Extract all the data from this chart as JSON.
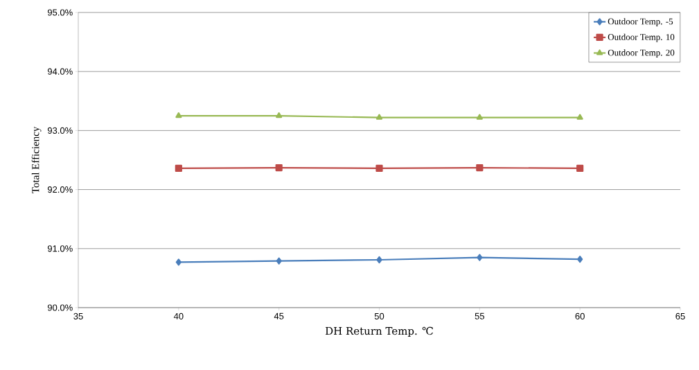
{
  "chart_data": {
    "type": "line",
    "xlabel": "DH Return Temp. ℃",
    "ylabel": "Total Efficiency",
    "x": [
      40,
      45,
      50,
      55,
      60
    ],
    "series": [
      {
        "name": "Outdoor Temp. -5",
        "color": "#4a7ebb",
        "marker": "diamond",
        "values": [
          90.77,
          90.79,
          90.81,
          90.85,
          90.82
        ]
      },
      {
        "name": "Outdoor Temp. 10",
        "color": "#be4b48",
        "marker": "square",
        "values": [
          92.36,
          92.37,
          92.36,
          92.37,
          92.36
        ]
      },
      {
        "name": "Outdoor Temp. 20",
        "color": "#98b954",
        "marker": "triangle",
        "values": [
          93.25,
          93.25,
          93.22,
          93.22,
          93.22
        ]
      }
    ],
    "xlim": [
      35,
      65
    ],
    "xticks": [
      35,
      40,
      45,
      50,
      55,
      60,
      65
    ],
    "ylim": [
      90,
      95
    ],
    "yticks": [
      {
        "value": 90,
        "label": "90.0%"
      },
      {
        "value": 91,
        "label": "91.0%"
      },
      {
        "value": 92,
        "label": "92.0%"
      },
      {
        "value": 93,
        "label": "93.0%"
      },
      {
        "value": 94,
        "label": "94.0%"
      },
      {
        "value": 95,
        "label": "95.0%"
      }
    ],
    "grid": "y",
    "legend": "top right",
    "line_style": "solid"
  }
}
